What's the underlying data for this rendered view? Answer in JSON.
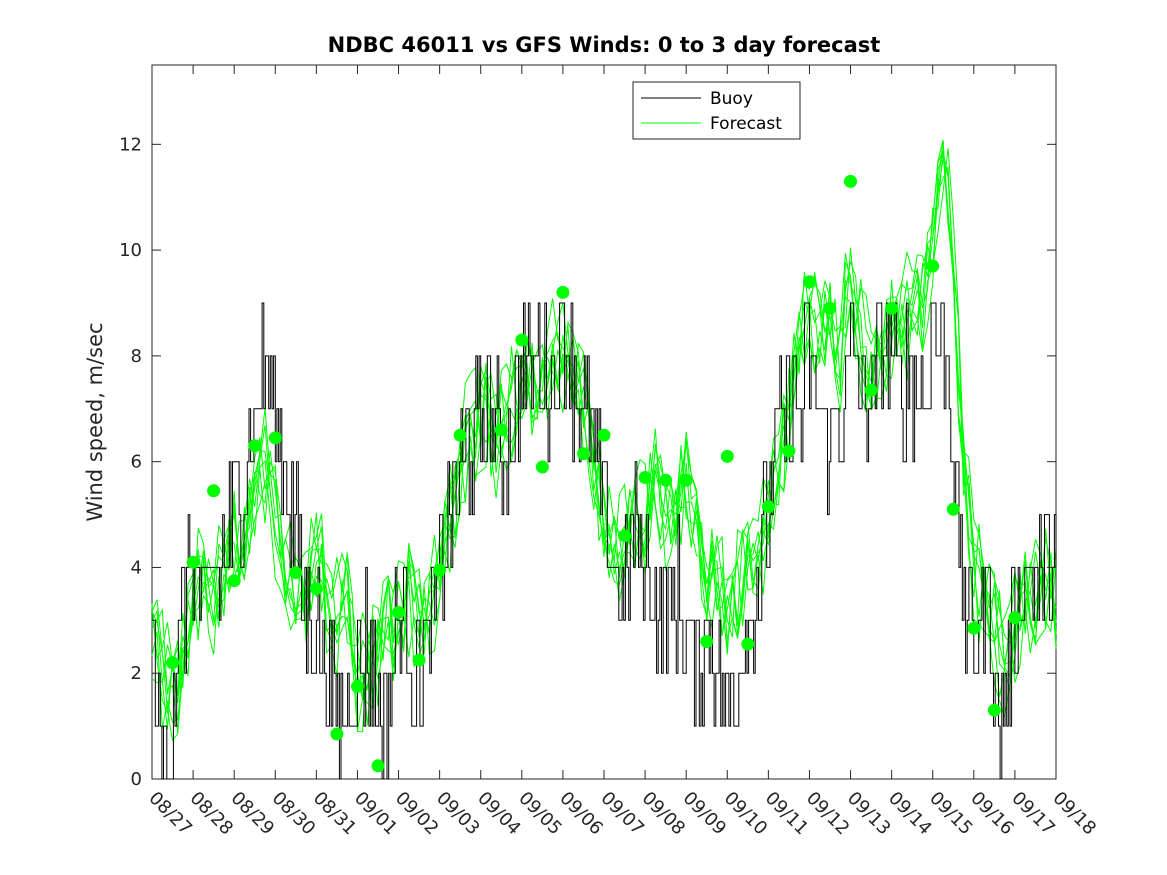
{
  "chart_data": {
    "type": "line",
    "title": "NDBC 46011 vs GFS Winds: 0 to 3 day forecast",
    "xlabel": "",
    "ylabel": "Wind speed, m/sec",
    "xlim": [
      0,
      22
    ],
    "ylim": [
      0,
      13.5
    ],
    "x_tick_labels": [
      "08/27",
      "08/28",
      "08/29",
      "08/30",
      "08/31",
      "09/01",
      "09/02",
      "09/03",
      "09/04",
      "09/05",
      "09/06",
      "09/07",
      "09/08",
      "09/09",
      "09/10",
      "09/11",
      "09/12",
      "09/13",
      "09/14",
      "09/15",
      "09/16",
      "09/17",
      "09/18"
    ],
    "y_ticks": [
      0,
      2,
      4,
      6,
      8,
      10,
      12
    ],
    "legend": {
      "position": "top-center",
      "entries": [
        "Buoy",
        "Forecast"
      ]
    },
    "colors": {
      "buoy": "#000000",
      "forecast": "#00ff00",
      "markers": "#00ff00"
    },
    "buoy_trend": [
      [
        0,
        3
      ],
      [
        0.15,
        1
      ],
      [
        0.4,
        0.5
      ],
      [
        0.55,
        2
      ],
      [
        0.75,
        3
      ],
      [
        0.9,
        4
      ],
      [
        1.1,
        4
      ],
      [
        1.3,
        3
      ],
      [
        1.5,
        4
      ],
      [
        1.7,
        4
      ],
      [
        2,
        5
      ],
      [
        2.3,
        6
      ],
      [
        2.55,
        7
      ],
      [
        2.8,
        8
      ],
      [
        3,
        7
      ],
      [
        3.2,
        6
      ],
      [
        3.4,
        5
      ],
      [
        3.6,
        4
      ],
      [
        3.8,
        3
      ],
      [
        4,
        3
      ],
      [
        4.2,
        2
      ],
      [
        4.4,
        1.5
      ],
      [
        4.6,
        1
      ],
      [
        4.8,
        1.5
      ],
      [
        5,
        2
      ],
      [
        5.2,
        2.5
      ],
      [
        5.4,
        2
      ],
      [
        5.6,
        1
      ],
      [
        5.8,
        2
      ],
      [
        6,
        3
      ],
      [
        6.2,
        3
      ],
      [
        6.4,
        2
      ],
      [
        6.6,
        2
      ],
      [
        6.8,
        3
      ],
      [
        7,
        4
      ],
      [
        7.3,
        5
      ],
      [
        7.6,
        6
      ],
      [
        7.9,
        6.5
      ],
      [
        8.2,
        7
      ],
      [
        8.5,
        6
      ],
      [
        8.8,
        6.5
      ],
      [
        9,
        8
      ],
      [
        9.2,
        7.5
      ],
      [
        9.5,
        8
      ],
      [
        9.8,
        7.5
      ],
      [
        10,
        8.5
      ],
      [
        10.3,
        7.5
      ],
      [
        10.6,
        6.5
      ],
      [
        10.8,
        6
      ],
      [
        11,
        5
      ],
      [
        11.2,
        4
      ],
      [
        11.4,
        3.5
      ],
      [
        11.6,
        4
      ],
      [
        11.8,
        4.5
      ],
      [
        12,
        4
      ],
      [
        12.3,
        3.5
      ],
      [
        12.6,
        3
      ],
      [
        12.8,
        3.5
      ],
      [
        13,
        3
      ],
      [
        13.2,
        2
      ],
      [
        13.4,
        2.5
      ],
      [
        13.6,
        3
      ],
      [
        13.8,
        2
      ],
      [
        14,
        1
      ],
      [
        14.2,
        2
      ],
      [
        14.5,
        3
      ],
      [
        14.8,
        4
      ],
      [
        15,
        5
      ],
      [
        15.2,
        6.5
      ],
      [
        15.4,
        7
      ],
      [
        15.6,
        7.5
      ],
      [
        15.8,
        7
      ],
      [
        16,
        8
      ],
      [
        16.2,
        7
      ],
      [
        16.4,
        6.5
      ],
      [
        16.6,
        6.5
      ],
      [
        16.8,
        7
      ],
      [
        17,
        8
      ],
      [
        17.2,
        7.5
      ],
      [
        17.4,
        7
      ],
      [
        17.6,
        7.5
      ],
      [
        17.8,
        8
      ],
      [
        18,
        8.5
      ],
      [
        18.2,
        7
      ],
      [
        18.4,
        8
      ],
      [
        18.6,
        7.5
      ],
      [
        18.8,
        7
      ],
      [
        19,
        9
      ],
      [
        19.2,
        8
      ],
      [
        19.4,
        8
      ],
      [
        19.6,
        5
      ],
      [
        19.8,
        3
      ],
      [
        20,
        2.5
      ],
      [
        20.2,
        3
      ],
      [
        20.4,
        3.5
      ],
      [
        20.6,
        1
      ],
      [
        20.8,
        2
      ],
      [
        21,
        3
      ],
      [
        21.2,
        4
      ],
      [
        21.4,
        4
      ],
      [
        21.6,
        3.5
      ],
      [
        21.8,
        4
      ],
      [
        22,
        4
      ]
    ],
    "forecast_trend": [
      [
        0,
        3
      ],
      [
        0.25,
        2
      ],
      [
        0.5,
        1.5
      ],
      [
        0.75,
        2.2
      ],
      [
        1,
        3.5
      ],
      [
        1.25,
        4
      ],
      [
        1.5,
        3.5
      ],
      [
        1.75,
        4
      ],
      [
        2,
        4.5
      ],
      [
        2.25,
        4
      ],
      [
        2.5,
        5.5
      ],
      [
        2.75,
        6
      ],
      [
        3,
        5
      ],
      [
        3.25,
        4
      ],
      [
        3.5,
        3.5
      ],
      [
        3.75,
        3.5
      ],
      [
        4,
        4.5
      ],
      [
        4.25,
        3.5
      ],
      [
        4.5,
        3
      ],
      [
        4.75,
        3.5
      ],
      [
        5,
        2
      ],
      [
        5.25,
        2
      ],
      [
        5.5,
        2.5
      ],
      [
        5.75,
        3
      ],
      [
        6,
        3
      ],
      [
        6.25,
        3.5
      ],
      [
        6.5,
        3
      ],
      [
        6.75,
        3
      ],
      [
        7,
        4
      ],
      [
        7.25,
        5
      ],
      [
        7.5,
        6
      ],
      [
        7.75,
        6.5
      ],
      [
        8,
        7
      ],
      [
        8.25,
        6.5
      ],
      [
        8.5,
        6.5
      ],
      [
        8.75,
        7
      ],
      [
        9,
        7.5
      ],
      [
        9.25,
        7.5
      ],
      [
        9.5,
        7.5
      ],
      [
        9.75,
        8
      ],
      [
        10,
        8
      ],
      [
        10.25,
        7.5
      ],
      [
        10.5,
        7
      ],
      [
        10.75,
        6
      ],
      [
        11,
        5
      ],
      [
        11.25,
        4.5
      ],
      [
        11.5,
        4.5
      ],
      [
        11.75,
        5
      ],
      [
        12,
        5
      ],
      [
        12.25,
        5.5
      ],
      [
        12.5,
        5
      ],
      [
        12.75,
        5
      ],
      [
        13,
        5.5
      ],
      [
        13.25,
        5
      ],
      [
        13.5,
        4
      ],
      [
        13.75,
        4
      ],
      [
        14,
        3
      ],
      [
        14.25,
        3.5
      ],
      [
        14.5,
        4
      ],
      [
        14.75,
        4
      ],
      [
        15,
        5
      ],
      [
        15.25,
        6
      ],
      [
        15.5,
        7
      ],
      [
        15.75,
        8
      ],
      [
        16,
        9
      ],
      [
        16.25,
        8.5
      ],
      [
        16.5,
        8.5
      ],
      [
        16.75,
        8
      ],
      [
        17,
        9.5
      ],
      [
        17.25,
        8.5
      ],
      [
        17.5,
        7.5
      ],
      [
        17.75,
        8
      ],
      [
        18,
        8.5
      ],
      [
        18.25,
        8.5
      ],
      [
        18.5,
        9
      ],
      [
        18.75,
        9
      ],
      [
        19,
        10
      ],
      [
        19.25,
        12
      ],
      [
        19.5,
        10
      ],
      [
        19.75,
        6
      ],
      [
        20,
        4
      ],
      [
        20.25,
        3.5
      ],
      [
        20.5,
        3
      ],
      [
        20.75,
        2
      ],
      [
        21,
        3
      ],
      [
        21.25,
        3.5
      ],
      [
        21.5,
        3.5
      ],
      [
        21.75,
        4
      ],
      [
        22,
        3.5
      ]
    ],
    "forecast_markers": [
      [
        0.5,
        2.2
      ],
      [
        1,
        4.1
      ],
      [
        1.5,
        5.45
      ],
      [
        2,
        3.75
      ],
      [
        2.5,
        6.3
      ],
      [
        3,
        6.45
      ],
      [
        3.5,
        3.9
      ],
      [
        4,
        3.6
      ],
      [
        4.5,
        0.85
      ],
      [
        5,
        1.75
      ],
      [
        5.5,
        0.25
      ],
      [
        6,
        3.15
      ],
      [
        6.5,
        2.25
      ],
      [
        7,
        3.95
      ],
      [
        7.5,
        6.5
      ],
      [
        8.5,
        6.6
      ],
      [
        9,
        8.3
      ],
      [
        9.5,
        5.9
      ],
      [
        10,
        9.2
      ],
      [
        10.5,
        6.15
      ],
      [
        11,
        6.5
      ],
      [
        11.5,
        4.6
      ],
      [
        12,
        5.7
      ],
      [
        12.5,
        5.65
      ],
      [
        13,
        5.65
      ],
      [
        13.5,
        2.6
      ],
      [
        14,
        6.1
      ],
      [
        14.5,
        2.55
      ],
      [
        15,
        5.15
      ],
      [
        15.5,
        6.2
      ],
      [
        16,
        9.4
      ],
      [
        16.5,
        8.9
      ],
      [
        17,
        11.3
      ],
      [
        17.5,
        7.35
      ],
      [
        18,
        8.9
      ],
      [
        19,
        9.7
      ],
      [
        19.5,
        5.1
      ],
      [
        20,
        2.85
      ],
      [
        20.5,
        1.3
      ],
      [
        21,
        3.05
      ]
    ]
  }
}
